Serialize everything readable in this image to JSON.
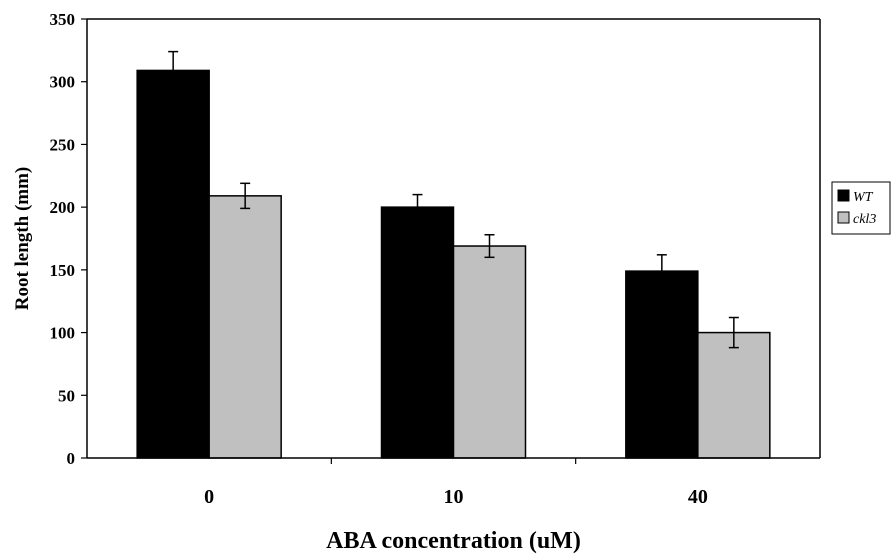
{
  "chart_data": {
    "type": "bar",
    "title": "",
    "xlabel": "ABA concentration (uM)",
    "ylabel": "Root length (mm)",
    "categories": [
      "0",
      "10",
      "40"
    ],
    "ylim": [
      0,
      350
    ],
    "yticks": [
      0,
      50,
      100,
      150,
      200,
      250,
      300,
      350
    ],
    "grid": false,
    "legend_position": "right",
    "series": [
      {
        "name": "WT",
        "color": "#000000",
        "values": [
          309,
          200,
          149
        ],
        "errors": [
          15,
          10,
          13
        ]
      },
      {
        "name": "ckl3",
        "color": "#c0c0c0",
        "values": [
          209,
          169,
          100
        ],
        "errors": [
          10,
          9,
          12
        ]
      }
    ]
  }
}
